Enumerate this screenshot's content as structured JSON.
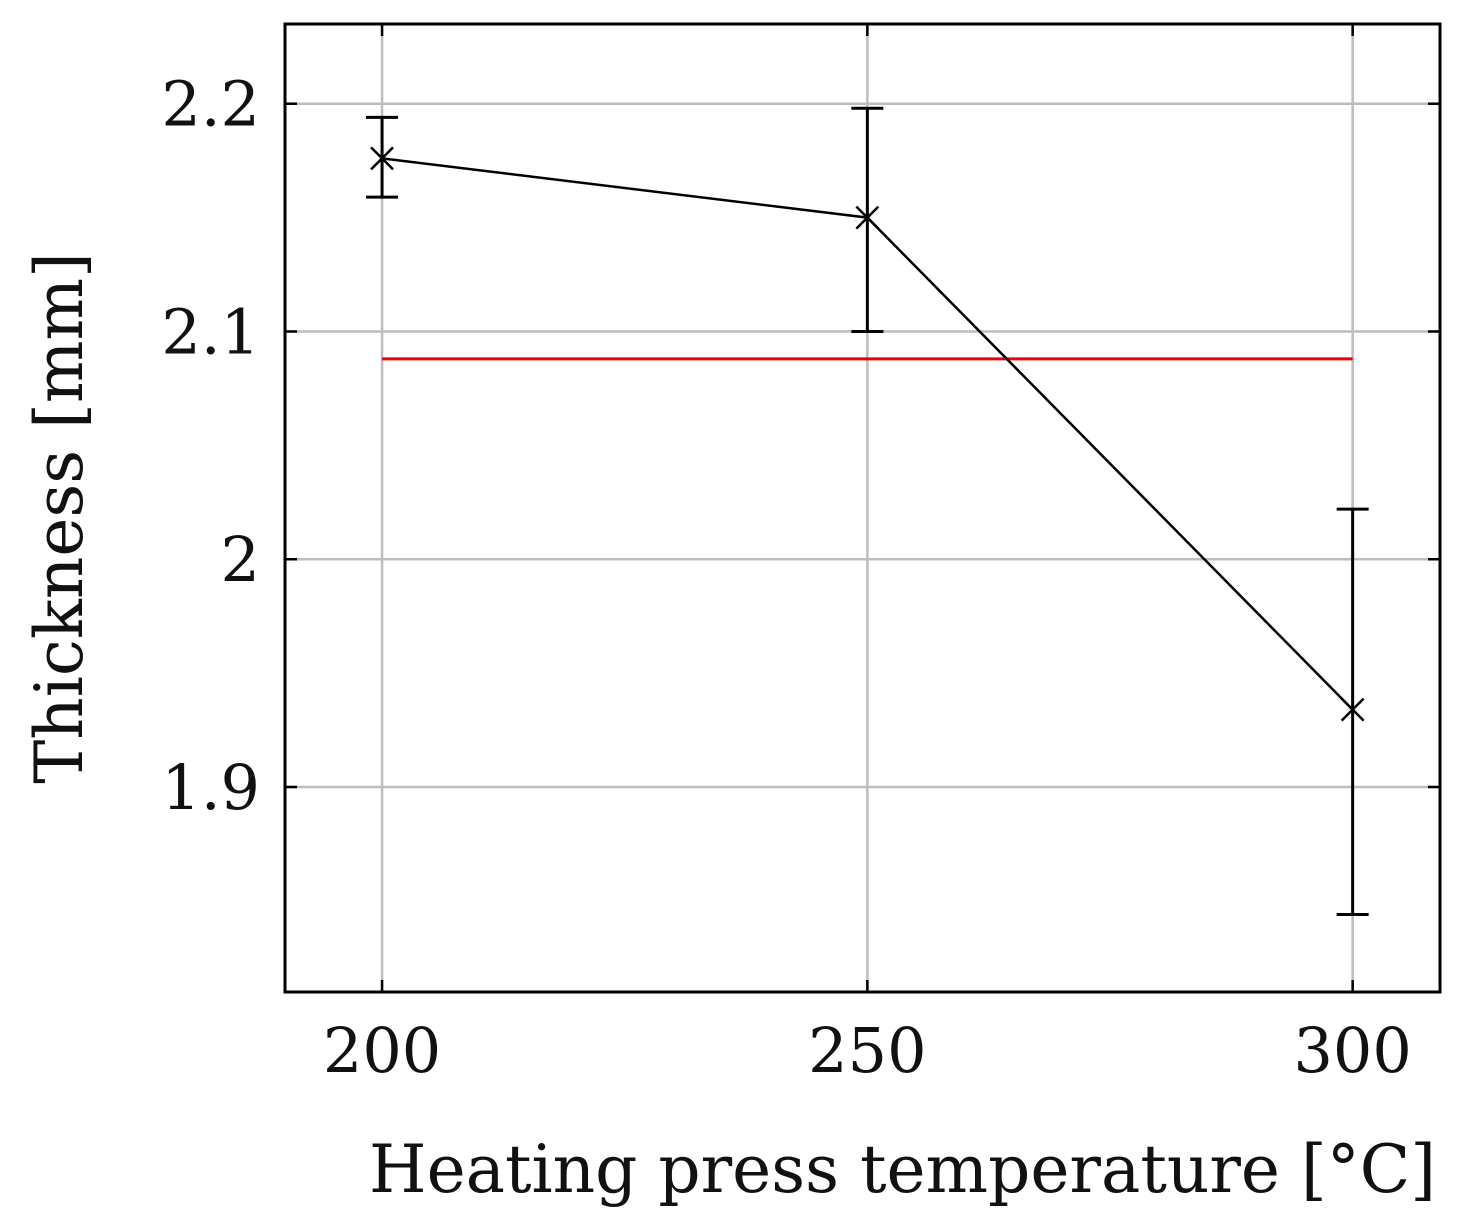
{
  "chart_data": {
    "type": "line",
    "xlabel": "Heating press temperature [°C]",
    "ylabel": "Thickness [mm]",
    "xlim": [
      190,
      309
    ],
    "ylim": [
      1.81,
      2.235
    ],
    "xticks": [
      200,
      250,
      300
    ],
    "yticks": [
      1.9,
      2,
      2.1,
      2.2
    ],
    "xtick_labels": [
      "200",
      "250",
      "300"
    ],
    "ytick_labels": [
      "1.9",
      "2",
      "2.1",
      "2.2"
    ],
    "grid": true,
    "series": [
      {
        "marker": "x",
        "color": "#000000",
        "x": [
          200,
          250,
          300
        ],
        "y": [
          2.176,
          2.15,
          1.934
        ],
        "err_low": [
          2.159,
          2.1,
          1.844
        ],
        "err_high": [
          2.194,
          2.198,
          2.022
        ]
      }
    ],
    "reference_line": {
      "y": 2.088,
      "x_from": 200,
      "x_to": 300,
      "color": "#e8000b"
    }
  }
}
